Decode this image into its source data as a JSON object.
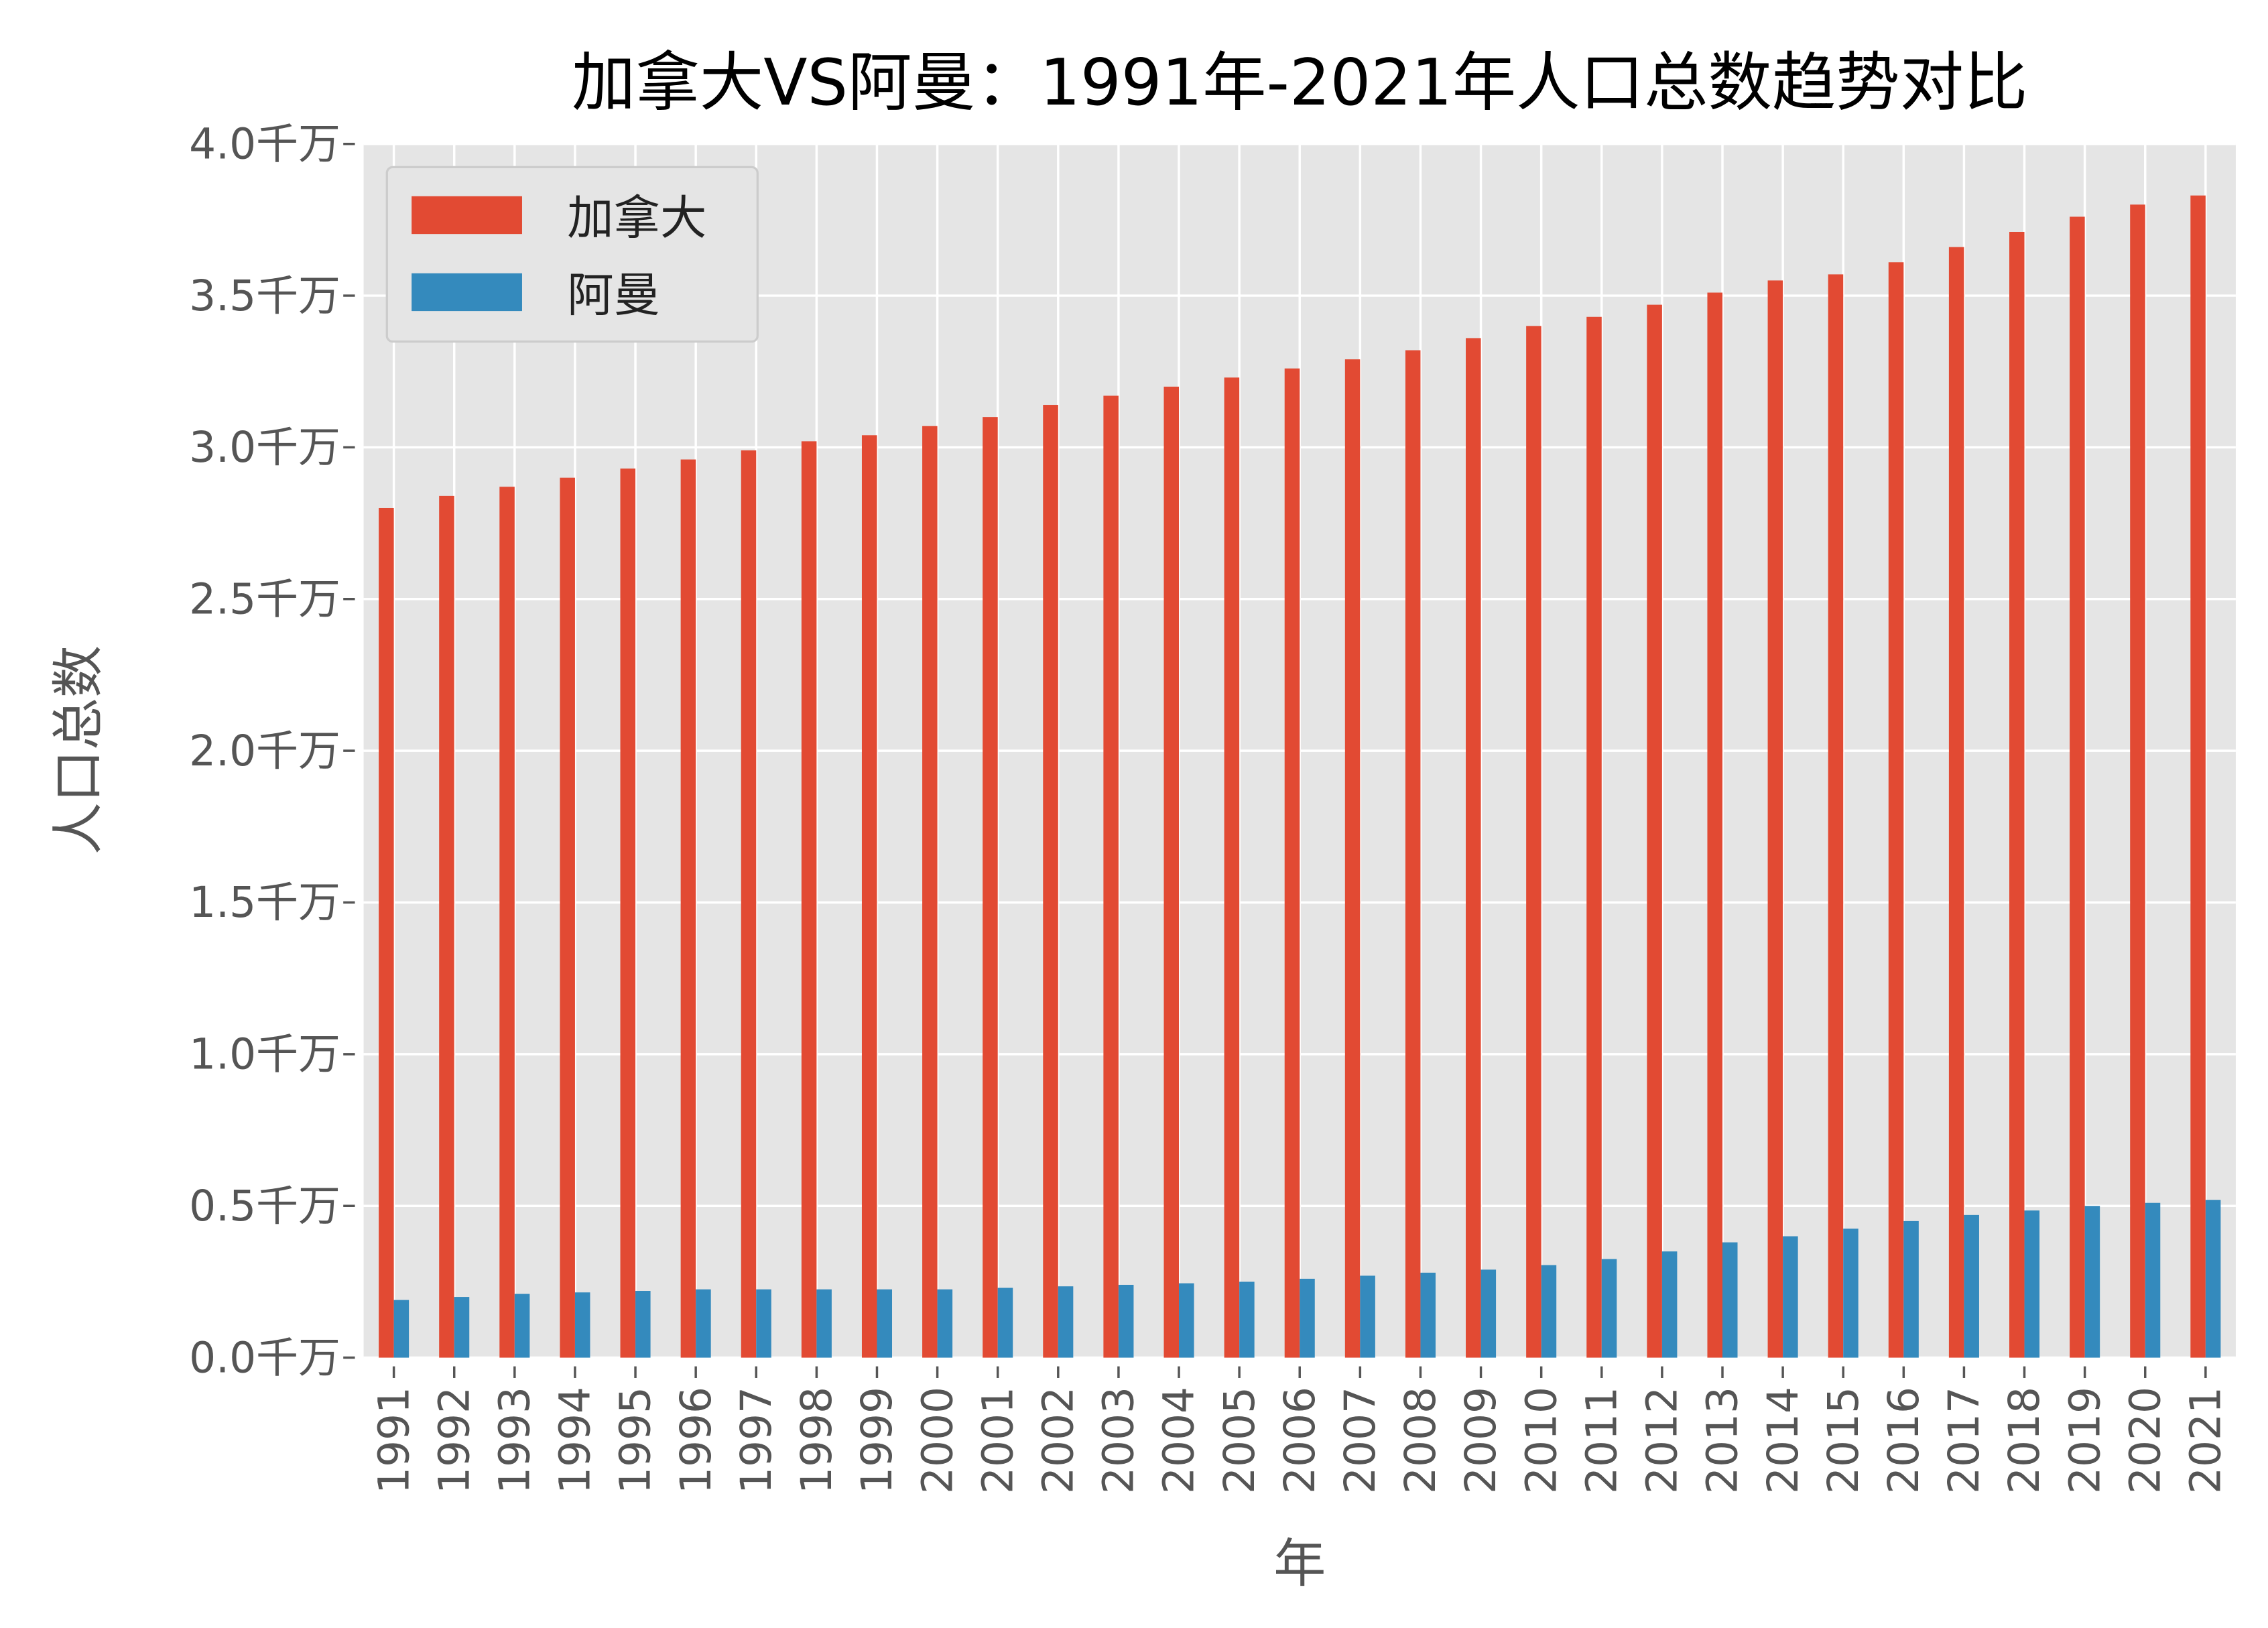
{
  "chart_data": {
    "type": "bar",
    "title": "加拿大VS阿曼：1991年-2021年人口总数趋势对比",
    "xlabel": "年",
    "ylabel": "人口总数",
    "ylim": [
      0,
      4.0
    ],
    "yunit": "千万",
    "yticks": [
      "0.0千万",
      "0.5千万",
      "1.0千万",
      "1.5千万",
      "2.0千万",
      "2.5千万",
      "3.0千万",
      "3.5千万",
      "4.0千万"
    ],
    "ytick_values": [
      0,
      0.5,
      1.0,
      1.5,
      2.0,
      2.5,
      3.0,
      3.5,
      4.0
    ],
    "grid": true,
    "legend_position": "top-left",
    "categories": [
      "1991",
      "1992",
      "1993",
      "1994",
      "1995",
      "1996",
      "1997",
      "1998",
      "1999",
      "2000",
      "2001",
      "2002",
      "2003",
      "2004",
      "2005",
      "2006",
      "2007",
      "2008",
      "2009",
      "2010",
      "2011",
      "2012",
      "2013",
      "2014",
      "2015",
      "2016",
      "2017",
      "2018",
      "2019",
      "2020",
      "2021"
    ],
    "series": [
      {
        "name": "加拿大",
        "color": "#E24A33",
        "values": [
          2.8,
          2.84,
          2.87,
          2.9,
          2.93,
          2.96,
          2.99,
          3.02,
          3.04,
          3.07,
          3.1,
          3.14,
          3.17,
          3.2,
          3.23,
          3.26,
          3.29,
          3.32,
          3.36,
          3.4,
          3.43,
          3.47,
          3.51,
          3.55,
          3.57,
          3.61,
          3.66,
          3.71,
          3.76,
          3.8,
          3.83
        ]
      },
      {
        "name": "阿曼",
        "color": "#348ABD",
        "values": [
          0.19,
          0.2,
          0.21,
          0.215,
          0.22,
          0.225,
          0.225,
          0.225,
          0.225,
          0.225,
          0.23,
          0.235,
          0.24,
          0.245,
          0.25,
          0.26,
          0.27,
          0.28,
          0.29,
          0.305,
          0.325,
          0.35,
          0.38,
          0.4,
          0.425,
          0.45,
          0.47,
          0.485,
          0.5,
          0.51,
          0.52
        ]
      }
    ],
    "background_color": "#E5E5E5"
  }
}
